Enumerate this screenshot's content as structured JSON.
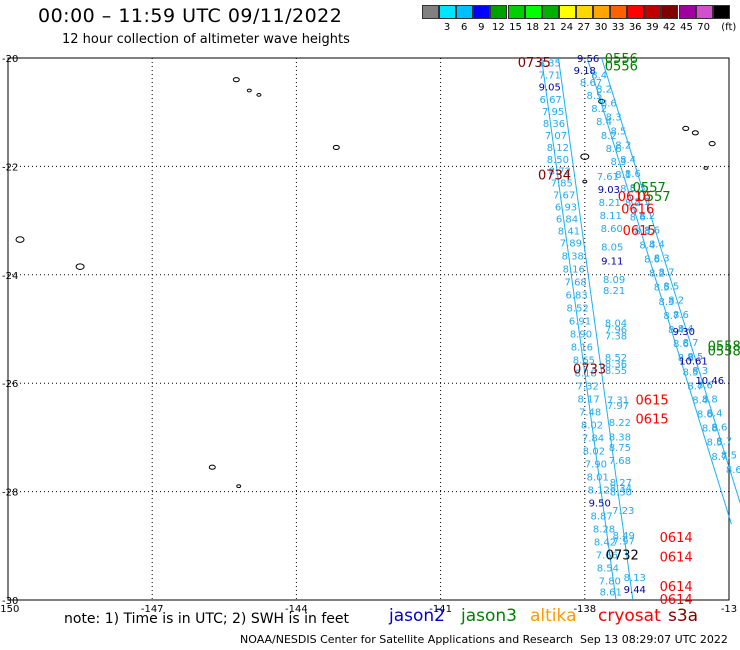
{
  "title": "00:00 – 11:59 UTC 09/11/2022",
  "subtitle": "12 hour collection of altimeter wave heights",
  "colorbar": {
    "unit": "(ft)",
    "bins": [
      {
        "label": "",
        "color": "#808080"
      },
      {
        "label": "3",
        "color": "#00e5ff"
      },
      {
        "label": "6",
        "color": "#00bfff"
      },
      {
        "label": "9",
        "color": "#0000ff"
      },
      {
        "label": "12",
        "color": "#00a000"
      },
      {
        "label": "15",
        "color": "#00d000"
      },
      {
        "label": "18",
        "color": "#00ff00"
      },
      {
        "label": "21",
        "color": "#00b000"
      },
      {
        "label": "24",
        "color": "#ffff00"
      },
      {
        "label": "27",
        "color": "#ffd700"
      },
      {
        "label": "30",
        "color": "#ffa500"
      },
      {
        "label": "33",
        "color": "#ff6000"
      },
      {
        "label": "36",
        "color": "#ff0000"
      },
      {
        "label": "39",
        "color": "#c00000"
      },
      {
        "label": "42",
        "color": "#800000"
      },
      {
        "label": "45",
        "color": "#a000a0"
      },
      {
        "label": "70",
        "color": "#d050d0"
      },
      {
        "label": "",
        "color": "#000000"
      }
    ]
  },
  "axes": {
    "lon_labels": [
      "-150",
      "-147",
      "-144",
      "-141",
      "-138",
      "-13"
    ],
    "lat_labels": [
      "-20",
      "-22",
      "-24",
      "-26",
      "-28",
      "-30"
    ],
    "lon_range": [
      -150,
      -135
    ],
    "lat_range": [
      -30,
      -20
    ]
  },
  "tracks": {
    "west": [
      {
        "lon": -138.73,
        "lat": -20.08,
        "v": "8.35"
      },
      {
        "lon": -138.73,
        "lat": -20.3,
        "v": "7.71"
      },
      {
        "lon": -138.73,
        "lat": -20.53,
        "v": "9.05"
      },
      {
        "lon": -138.71,
        "lat": -20.76,
        "v": "6.67"
      },
      {
        "lon": -138.66,
        "lat": -20.98,
        "v": "7.95"
      },
      {
        "lon": -138.64,
        "lat": -21.2,
        "v": "8.36"
      },
      {
        "lon": -138.6,
        "lat": -21.42,
        "v": "7.07"
      },
      {
        "lon": -138.56,
        "lat": -21.64,
        "v": "8.12"
      },
      {
        "lon": -138.56,
        "lat": -21.86,
        "v": "8.50"
      },
      {
        "lon": -138.52,
        "lat": -22.08,
        "v": "8.72"
      },
      {
        "lon": -138.48,
        "lat": -22.3,
        "v": "7.85"
      },
      {
        "lon": -138.43,
        "lat": -22.52,
        "v": "7.67"
      },
      {
        "lon": -138.39,
        "lat": -22.74,
        "v": "6.93"
      },
      {
        "lon": -138.37,
        "lat": -22.96,
        "v": "6.84"
      },
      {
        "lon": -138.33,
        "lat": -23.18,
        "v": "8.41"
      },
      {
        "lon": -138.29,
        "lat": -23.4,
        "v": "7.89"
      },
      {
        "lon": -138.25,
        "lat": -23.64,
        "v": "8.38"
      },
      {
        "lon": -138.23,
        "lat": -23.88,
        "v": "8.16"
      },
      {
        "lon": -138.19,
        "lat": -24.12,
        "v": "7.68"
      },
      {
        "lon": -138.17,
        "lat": -24.36,
        "v": "6.83"
      },
      {
        "lon": -138.15,
        "lat": -24.6,
        "v": "8.52"
      },
      {
        "lon": -138.1,
        "lat": -24.84,
        "v": "6.91"
      },
      {
        "lon": -138.08,
        "lat": -25.08,
        "v": "8.90"
      },
      {
        "lon": -138.06,
        "lat": -25.32,
        "v": "8.16"
      },
      {
        "lon": -138.02,
        "lat": -25.56,
        "v": "8.65"
      },
      {
        "lon": -137.98,
        "lat": -25.8,
        "v": "8.18"
      },
      {
        "lon": -137.94,
        "lat": -26.04,
        "v": "7.32"
      },
      {
        "lon": -137.92,
        "lat": -26.28,
        "v": "8.17"
      },
      {
        "lon": -137.89,
        "lat": -26.52,
        "v": "7.48"
      },
      {
        "lon": -137.85,
        "lat": -26.76,
        "v": "8.02"
      },
      {
        "lon": -137.83,
        "lat": -27.0,
        "v": "7.84"
      },
      {
        "lon": -137.81,
        "lat": -27.24,
        "v": "8.02"
      },
      {
        "lon": -137.77,
        "lat": -27.48,
        "v": "7.90"
      },
      {
        "lon": -137.73,
        "lat": -27.72,
        "v": "8.01"
      },
      {
        "lon": -137.71,
        "lat": -27.96,
        "v": "8.12"
      },
      {
        "lon": -137.69,
        "lat": -28.2,
        "v": "9.50"
      },
      {
        "lon": -137.65,
        "lat": -28.44,
        "v": "8.87"
      },
      {
        "lon": -137.6,
        "lat": -28.68,
        "v": "8.28"
      },
      {
        "lon": -137.58,
        "lat": -28.92,
        "v": "8.42"
      },
      {
        "lon": -137.54,
        "lat": -29.16,
        "v": "7.66"
      },
      {
        "lon": -137.52,
        "lat": -29.4,
        "v": "8.54"
      },
      {
        "lon": -137.48,
        "lat": -29.64,
        "v": "7.80"
      },
      {
        "lon": -137.46,
        "lat": -29.84,
        "v": "8.61"
      }
    ],
    "middle": [
      {
        "lon": -137.52,
        "lat": -22.18,
        "v": "7.61"
      },
      {
        "lon": -137.5,
        "lat": -22.42,
        "v": "9.03"
      },
      {
        "lon": -137.48,
        "lat": -22.66,
        "v": "8.21"
      },
      {
        "lon": -137.46,
        "lat": -22.9,
        "v": "8.11"
      },
      {
        "lon": -137.44,
        "lat": -23.14,
        "v": "8.60"
      },
      {
        "lon": -137.43,
        "lat": -23.48,
        "v": "8.05"
      },
      {
        "lon": -137.43,
        "lat": -23.74,
        "v": "9.11"
      },
      {
        "lon": -137.39,
        "lat": -24.08,
        "v": "8.09"
      },
      {
        "lon": -137.39,
        "lat": -24.28,
        "v": "8.21"
      },
      {
        "lon": -137.35,
        "lat": -24.88,
        "v": "8.04"
      },
      {
        "lon": -137.35,
        "lat": -25.0,
        "v": "7.96"
      },
      {
        "lon": -137.35,
        "lat": -25.12,
        "v": "7.38"
      },
      {
        "lon": -137.35,
        "lat": -25.52,
        "v": "8.52"
      },
      {
        "lon": -137.35,
        "lat": -25.64,
        "v": "8.36"
      },
      {
        "lon": -137.35,
        "lat": -25.76,
        "v": "8.55"
      },
      {
        "lon": -137.31,
        "lat": -26.3,
        "v": "7.31"
      },
      {
        "lon": -137.31,
        "lat": -26.4,
        "v": "7.97"
      },
      {
        "lon": -137.27,
        "lat": -26.72,
        "v": "8.22"
      },
      {
        "lon": -137.27,
        "lat": -26.98,
        "v": "8.38"
      },
      {
        "lon": -137.27,
        "lat": -27.18,
        "v": "8.75"
      },
      {
        "lon": -137.27,
        "lat": -27.42,
        "v": "7.68"
      },
      {
        "lon": -137.25,
        "lat": -27.82,
        "v": "8.27"
      },
      {
        "lon": -137.25,
        "lat": -27.92,
        "v": "8.34"
      },
      {
        "lon": -137.25,
        "lat": -28.0,
        "v": "8.30"
      },
      {
        "lon": -137.2,
        "lat": -28.34,
        "v": "7.23"
      },
      {
        "lon": -137.19,
        "lat": -28.8,
        "v": "8.49"
      },
      {
        "lon": -137.19,
        "lat": -28.9,
        "v": "7.97"
      },
      {
        "lon": -136.96,
        "lat": -29.58,
        "v": "8.13"
      },
      {
        "lon": -136.96,
        "lat": -29.8,
        "v": "9.44"
      }
    ],
    "east_a": [
      {
        "lon": -138.0,
        "lat": -20.22,
        "v": "9.18"
      },
      {
        "lon": -137.87,
        "lat": -20.44,
        "v": "8.67"
      },
      {
        "lon": -137.8,
        "lat": -20.68,
        "v": "8.5"
      },
      {
        "lon": -137.7,
        "lat": -20.92,
        "v": "8.2"
      },
      {
        "lon": -137.6,
        "lat": -21.16,
        "v": "8.4"
      },
      {
        "lon": -137.5,
        "lat": -21.42,
        "v": "8.2"
      },
      {
        "lon": -137.4,
        "lat": -21.66,
        "v": "8.6"
      },
      {
        "lon": -137.3,
        "lat": -21.9,
        "v": "8.3"
      },
      {
        "lon": -137.2,
        "lat": -22.14,
        "v": "8.1"
      },
      {
        "lon": -137.1,
        "lat": -22.4,
        "v": "8.5"
      },
      {
        "lon": -137.0,
        "lat": -22.66,
        "v": "8.2"
      },
      {
        "lon": -136.9,
        "lat": -22.92,
        "v": "8.6"
      },
      {
        "lon": -136.8,
        "lat": -23.18,
        "v": "8.3"
      },
      {
        "lon": -136.7,
        "lat": -23.44,
        "v": "8.4"
      },
      {
        "lon": -136.6,
        "lat": -23.7,
        "v": "8.6"
      },
      {
        "lon": -136.5,
        "lat": -23.96,
        "v": "8.2"
      },
      {
        "lon": -136.4,
        "lat": -24.22,
        "v": "8.5"
      },
      {
        "lon": -136.3,
        "lat": -24.48,
        "v": "8.3"
      },
      {
        "lon": -136.2,
        "lat": -24.74,
        "v": "8.7"
      },
      {
        "lon": -136.1,
        "lat": -25.0,
        "v": "8.4"
      },
      {
        "lon": -136.0,
        "lat": -25.26,
        "v": "8.6"
      },
      {
        "lon": -135.9,
        "lat": -25.52,
        "v": "8.8"
      },
      {
        "lon": -135.8,
        "lat": -25.78,
        "v": "8.5"
      },
      {
        "lon": -135.7,
        "lat": -26.04,
        "v": "8.7"
      },
      {
        "lon": -135.6,
        "lat": -26.3,
        "v": "8.4"
      },
      {
        "lon": -135.5,
        "lat": -26.56,
        "v": "8.6"
      },
      {
        "lon": -135.4,
        "lat": -26.82,
        "v": "8.8"
      },
      {
        "lon": -135.3,
        "lat": -27.08,
        "v": "8.5"
      },
      {
        "lon": -135.2,
        "lat": -27.34,
        "v": "8.7"
      }
    ],
    "east_b": [
      {
        "lon": -137.7,
        "lat": -20.3,
        "v": "8.4"
      },
      {
        "lon": -137.6,
        "lat": -20.56,
        "v": "8.2"
      },
      {
        "lon": -137.5,
        "lat": -20.82,
        "v": "8.6"
      },
      {
        "lon": -137.4,
        "lat": -21.08,
        "v": "8.3"
      },
      {
        "lon": -137.3,
        "lat": -21.34,
        "v": "8.5"
      },
      {
        "lon": -137.2,
        "lat": -21.6,
        "v": "8.2"
      },
      {
        "lon": -137.1,
        "lat": -21.86,
        "v": "8.4"
      },
      {
        "lon": -137.0,
        "lat": -22.12,
        "v": "8.6"
      },
      {
        "lon": -136.9,
        "lat": -22.38,
        "v": "8.3"
      },
      {
        "lon": -136.8,
        "lat": -22.64,
        "v": "8.5"
      },
      {
        "lon": -136.7,
        "lat": -22.9,
        "v": "8.2"
      },
      {
        "lon": -136.6,
        "lat": -23.16,
        "v": "8.6"
      },
      {
        "lon": -136.5,
        "lat": -23.42,
        "v": "8.4"
      },
      {
        "lon": -136.4,
        "lat": -23.68,
        "v": "8.3"
      },
      {
        "lon": -136.3,
        "lat": -23.94,
        "v": "8.7"
      },
      {
        "lon": -136.2,
        "lat": -24.2,
        "v": "8.5"
      },
      {
        "lon": -136.1,
        "lat": -24.46,
        "v": "8.2"
      },
      {
        "lon": -136.0,
        "lat": -24.72,
        "v": "8.6"
      },
      {
        "lon": -135.9,
        "lat": -24.98,
        "v": "8.4"
      },
      {
        "lon": -135.8,
        "lat": -25.24,
        "v": "8.7"
      },
      {
        "lon": -135.7,
        "lat": -25.5,
        "v": "8.5"
      },
      {
        "lon": -135.6,
        "lat": -25.76,
        "v": "8.3"
      },
      {
        "lon": -135.5,
        "lat": -26.02,
        "v": "8.6"
      },
      {
        "lon": -135.4,
        "lat": -26.28,
        "v": "8.8"
      },
      {
        "lon": -135.3,
        "lat": -26.54,
        "v": "8.4"
      },
      {
        "lon": -135.2,
        "lat": -26.8,
        "v": "8.6"
      },
      {
        "lon": -135.1,
        "lat": -27.06,
        "v": "8.7"
      },
      {
        "lon": -135.0,
        "lat": -27.32,
        "v": "8.5"
      },
      {
        "lon": -134.9,
        "lat": -27.58,
        "v": "8.6"
      }
    ],
    "blue_values": [
      {
        "lon": -137.93,
        "lat": -20.0,
        "v": "9.56"
      },
      {
        "lon": -135.94,
        "lat": -25.04,
        "v": "9.30"
      },
      {
        "lon": -135.74,
        "lat": -25.58,
        "v": "10.61"
      },
      {
        "lon": -135.4,
        "lat": -25.94,
        "v": "10.46"
      }
    ]
  },
  "time_labels": [
    {
      "lon": -139.05,
      "lat": -20.07,
      "t": "0735",
      "color": "#800000"
    },
    {
      "lon": -137.24,
      "lat": -20.0,
      "t": "0556",
      "color": "#008000"
    },
    {
      "lon": -137.24,
      "lat": -20.14,
      "t": "0556",
      "color": "#008000"
    },
    {
      "lon": -138.63,
      "lat": -22.15,
      "t": "0734",
      "color": "#800000"
    },
    {
      "lon": -136.66,
      "lat": -22.38,
      "t": "0557",
      "color": "#008000"
    },
    {
      "lon": -136.56,
      "lat": -22.55,
      "t": "0557",
      "color": "#008000"
    },
    {
      "lon": -136.97,
      "lat": -22.55,
      "t": "0616",
      "color": "#ff0000"
    },
    {
      "lon": -136.9,
      "lat": -22.78,
      "t": "0616",
      "color": "#ff0000"
    },
    {
      "lon": -136.87,
      "lat": -23.17,
      "t": "0615",
      "color": "#ff0000"
    },
    {
      "lon": -135.1,
      "lat": -25.3,
      "t": "0558",
      "color": "#008000"
    },
    {
      "lon": -135.1,
      "lat": -25.4,
      "t": "0558",
      "color": "#008000"
    },
    {
      "lon": -137.9,
      "lat": -25.73,
      "t": "0733",
      "color": "#800000"
    },
    {
      "lon": -136.6,
      "lat": -26.3,
      "t": "0615",
      "color": "#ff0000"
    },
    {
      "lon": -136.6,
      "lat": -26.65,
      "t": "0615",
      "color": "#ff0000"
    },
    {
      "lon": -136.1,
      "lat": -28.84,
      "t": "0614",
      "color": "#ff0000"
    },
    {
      "lon": -137.22,
      "lat": -29.16,
      "t": "0732",
      "color": "#000000"
    },
    {
      "lon": -136.1,
      "lat": -29.2,
      "t": "0614",
      "color": "#ff0000"
    },
    {
      "lon": -136.1,
      "lat": -29.74,
      "t": "0614",
      "color": "#ff0000"
    },
    {
      "lon": -136.1,
      "lat": -29.98,
      "t": "0614",
      "color": "#ff0000"
    }
  ],
  "islands": [
    {
      "lon": -149.75,
      "lat": -23.35,
      "s": 3
    },
    {
      "lon": -148.5,
      "lat": -23.85,
      "s": 3
    },
    {
      "lon": -145.25,
      "lat": -20.4,
      "s": 2
    },
    {
      "lon": -144.98,
      "lat": -20.6,
      "s": 1
    },
    {
      "lon": -144.78,
      "lat": -20.68,
      "s": 1
    },
    {
      "lon": -143.17,
      "lat": -21.65,
      "s": 2
    },
    {
      "lon": -138.0,
      "lat": -21.82,
      "s": 3
    },
    {
      "lon": -138.0,
      "lat": -22.28,
      "s": 1
    },
    {
      "lon": -137.65,
      "lat": -20.8,
      "s": 2
    },
    {
      "lon": -135.9,
      "lat": -21.3,
      "s": 2
    },
    {
      "lon": -135.7,
      "lat": -21.38,
      "s": 2
    },
    {
      "lon": -135.35,
      "lat": -21.58,
      "s": 2
    },
    {
      "lon": -135.48,
      "lat": -22.03,
      "s": 1
    },
    {
      "lon": -134.55,
      "lat": -21.48,
      "s": 3
    },
    {
      "lon": -134.05,
      "lat": -23.15,
      "s": 2
    },
    {
      "lon": -145.75,
      "lat": -27.55,
      "s": 2
    },
    {
      "lon": -145.2,
      "lat": -27.9,
      "s": 1
    }
  ],
  "note": "note: 1) Time is in UTC; 2) SWH is in feet",
  "legend": [
    {
      "label": "jason2",
      "color": "#0000cc"
    },
    {
      "label": "jason3",
      "color": "#008000"
    },
    {
      "label": "altika",
      "color": "#ff9900"
    },
    {
      "label": "cryosat",
      "color": "#ff0000"
    },
    {
      "label": "s3a",
      "color": "#800000"
    }
  ],
  "credit": "NOAA/NESDIS Center for Satellite Applications and Research",
  "stamp": "Sep 13 08:29:07 UTC 2022",
  "colors": {
    "track": "#00aaee",
    "track_text": "#22aaee",
    "swh_high": "#0000aa"
  }
}
